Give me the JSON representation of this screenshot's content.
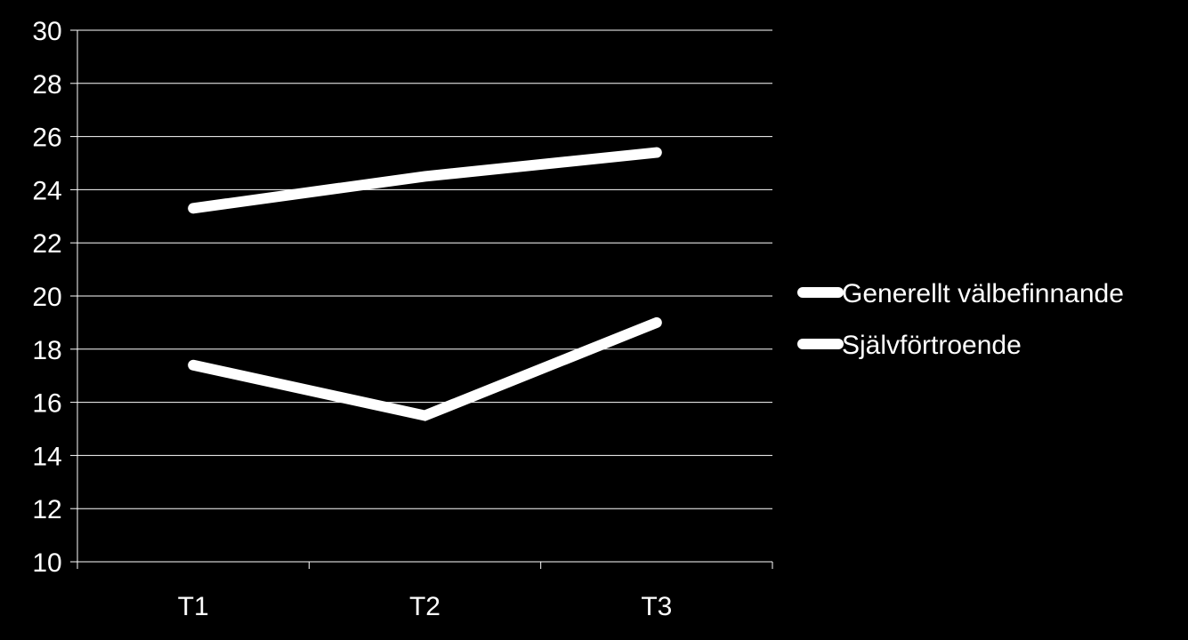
{
  "colors": {
    "background": "#000000",
    "gridline": "#ffffff",
    "axis": "#ffffff",
    "text": "#ffffff",
    "series_line": "#ffffff"
  },
  "chart_data": {
    "type": "line",
    "title": "",
    "xlabel": "",
    "ylabel": "",
    "categories": [
      "T1",
      "T2",
      "T3"
    ],
    "ylim": [
      10,
      30
    ],
    "y_ticks": [
      10,
      12,
      14,
      16,
      18,
      20,
      22,
      24,
      26,
      28,
      30
    ],
    "grid": true,
    "legend_position": "right",
    "series": [
      {
        "name": "Generellt välbefinnande",
        "values": [
          23.3,
          24.5,
          25.4
        ]
      },
      {
        "name": "Självförtroende",
        "values": [
          17.4,
          15.5,
          19.0
        ]
      }
    ]
  }
}
